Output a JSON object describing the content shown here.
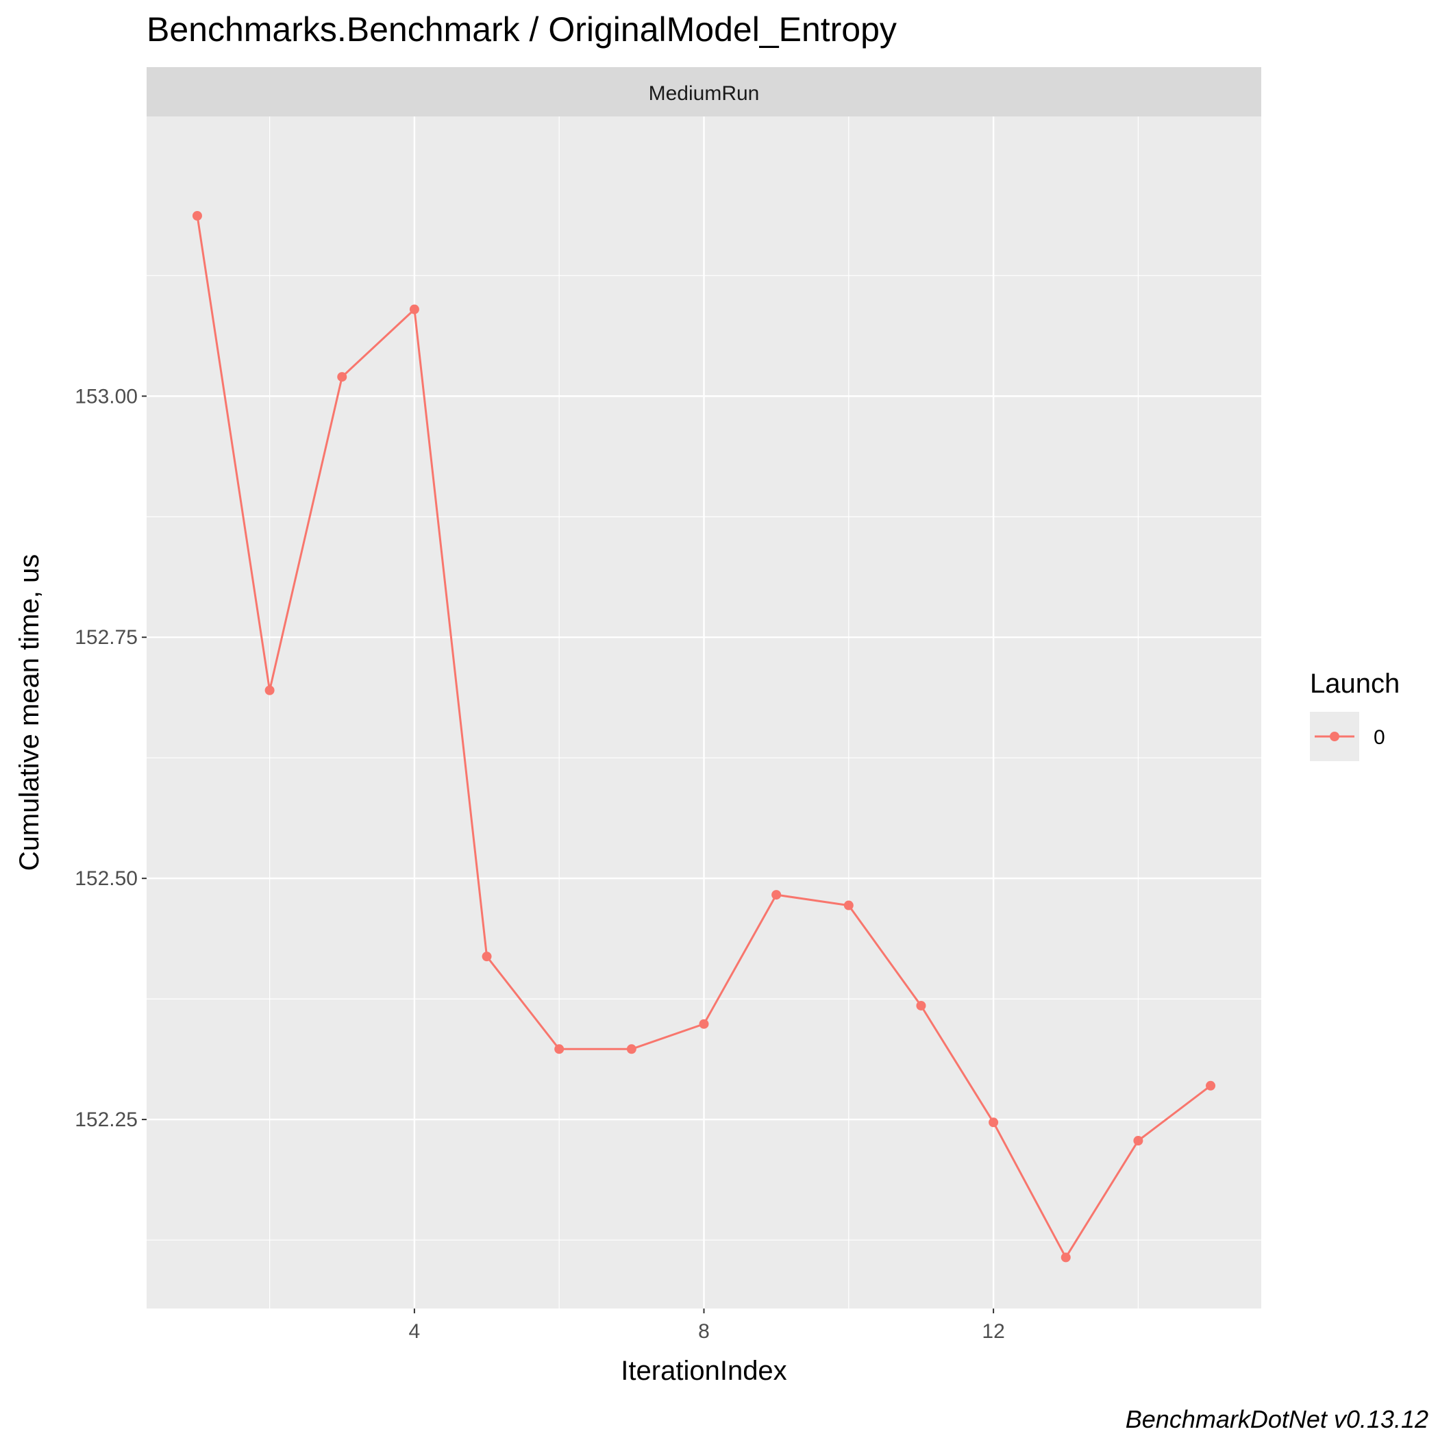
{
  "chart_data": {
    "type": "line",
    "title": "Benchmarks.Benchmark / OriginalModel_Entropy",
    "facet_label": "MediumRun",
    "xlabel": "IterationIndex",
    "ylabel": "Cumulative mean time, us",
    "xlim": [
      0.3,
      15.7
    ],
    "ylim": [
      152.054,
      153.29
    ],
    "x_ticks": [
      4,
      8,
      12
    ],
    "x_minor_ticks": [
      2,
      6,
      10,
      14
    ],
    "y_ticks": [
      152.25,
      152.5,
      152.75,
      153.0
    ],
    "y_tick_labels": [
      "152.25",
      "152.50",
      "152.75",
      "153.00"
    ],
    "y_minor_ticks": [
      152.125,
      152.375,
      152.625,
      152.875,
      153.125
    ],
    "grid": true,
    "legend_title": "Launch",
    "legend_position": "right",
    "series": [
      {
        "name": "0",
        "color": "#f8766d",
        "x": [
          1,
          2,
          3,
          4,
          5,
          6,
          7,
          8,
          9,
          10,
          11,
          12,
          13,
          14,
          15
        ],
        "y": [
          153.187,
          152.695,
          153.02,
          153.09,
          152.419,
          152.323,
          152.323,
          152.349,
          152.483,
          152.472,
          152.368,
          152.247,
          152.107,
          152.228,
          152.285
        ]
      }
    ],
    "caption": "BenchmarkDotNet v0.13.12"
  }
}
